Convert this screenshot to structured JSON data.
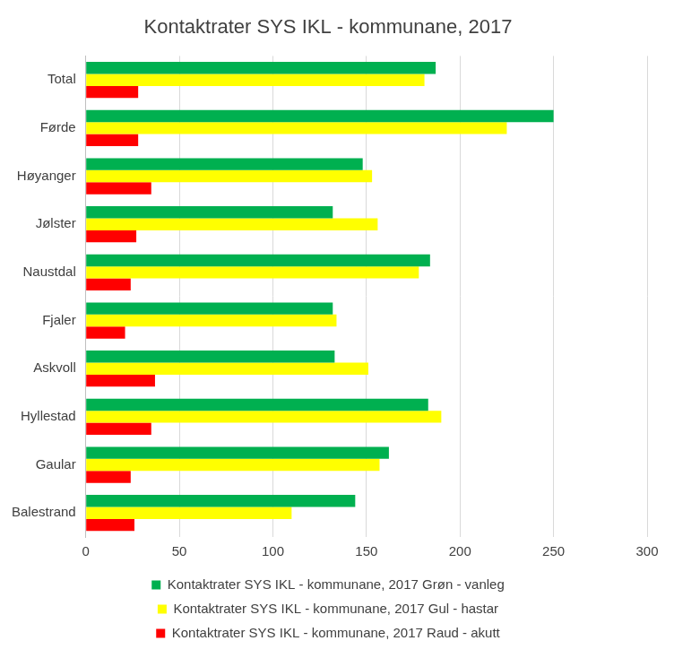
{
  "chart_data": {
    "type": "bar",
    "orientation": "horizontal",
    "title": "Kontaktrater SYS IKL - kommunane, 2017",
    "categories": [
      "Total",
      "Førde",
      "Høyanger",
      "Jølster",
      "Naustdal",
      "Fjaler",
      "Askvoll",
      "Hyllestad",
      "Gaular",
      "Balestrand"
    ],
    "series": [
      {
        "name": "Kontaktrater SYS IKL - kommunane, 2017 Grøn - vanleg",
        "color": "#00b050",
        "values": [
          187,
          250,
          148,
          132,
          184,
          132,
          133,
          183,
          162,
          144
        ]
      },
      {
        "name": "Kontaktrater SYS IKL - kommunane, 2017 Gul - hastar",
        "color": "#ffff00",
        "values": [
          181,
          225,
          153,
          156,
          178,
          134,
          151,
          190,
          157,
          110
        ]
      },
      {
        "name": "Kontaktrater SYS IKL - kommunane, 2017 Raud - akutt",
        "color": "#ff0000",
        "values": [
          28,
          28,
          35,
          27,
          24,
          21,
          37,
          35,
          24,
          26
        ]
      }
    ],
    "xlim": [
      0,
      300
    ],
    "xticks": [
      0,
      50,
      100,
      150,
      200,
      250,
      300
    ],
    "grid": true,
    "legend": "bottom"
  }
}
